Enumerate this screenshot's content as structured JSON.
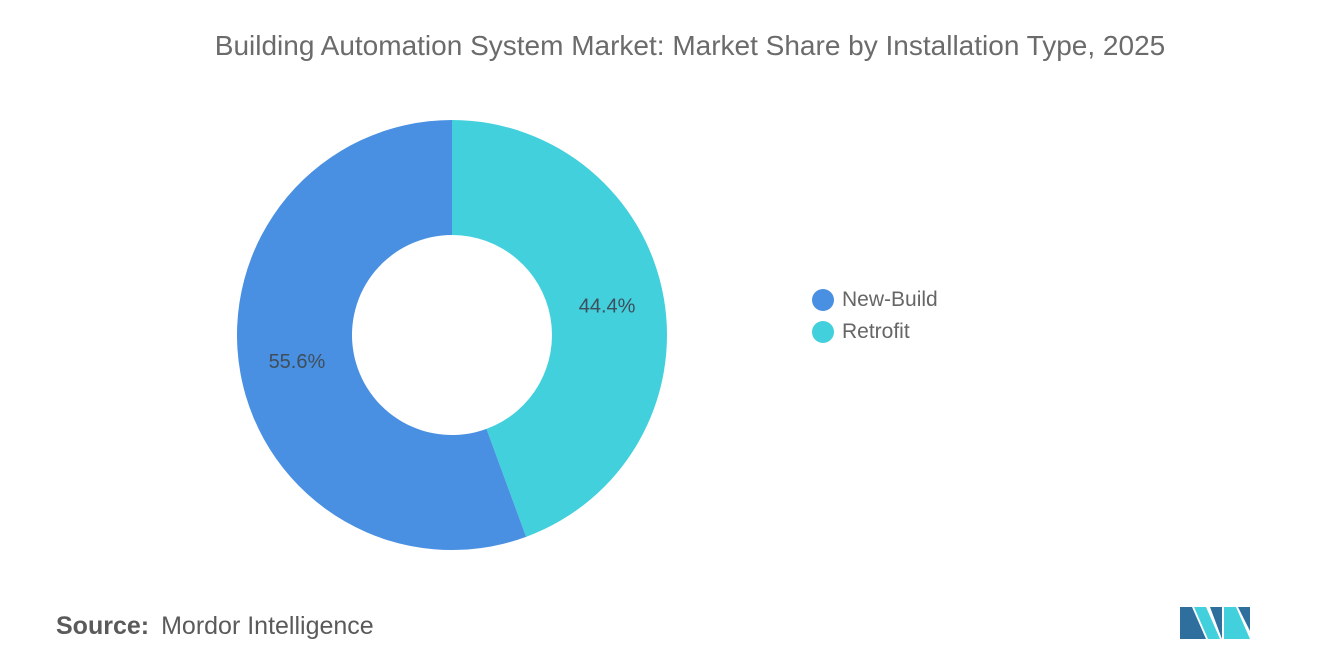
{
  "chart_data": {
    "type": "pie",
    "variant": "donut",
    "title": "Building Automation System Market: Market Share by Installation Type, 2025",
    "categories": [
      "New-Build",
      "Retrofit"
    ],
    "values": [
      55.6,
      44.4
    ],
    "labels": [
      "55.6%",
      "44.4%"
    ],
    "unit": "%",
    "colors": [
      "#4a90e2",
      "#42d0dc"
    ],
    "legend_position": "right"
  },
  "legend": {
    "items": [
      {
        "label": "New-Build",
        "color": "#4a90e2"
      },
      {
        "label": "Retrofit",
        "color": "#42d0dc"
      }
    ]
  },
  "source": {
    "label": "Source:",
    "text": "Mordor Intelligence"
  },
  "logo": {
    "icon": "mordor-intelligence-logo-icon",
    "colors": [
      "#2e6f9e",
      "#42d0dc"
    ]
  }
}
